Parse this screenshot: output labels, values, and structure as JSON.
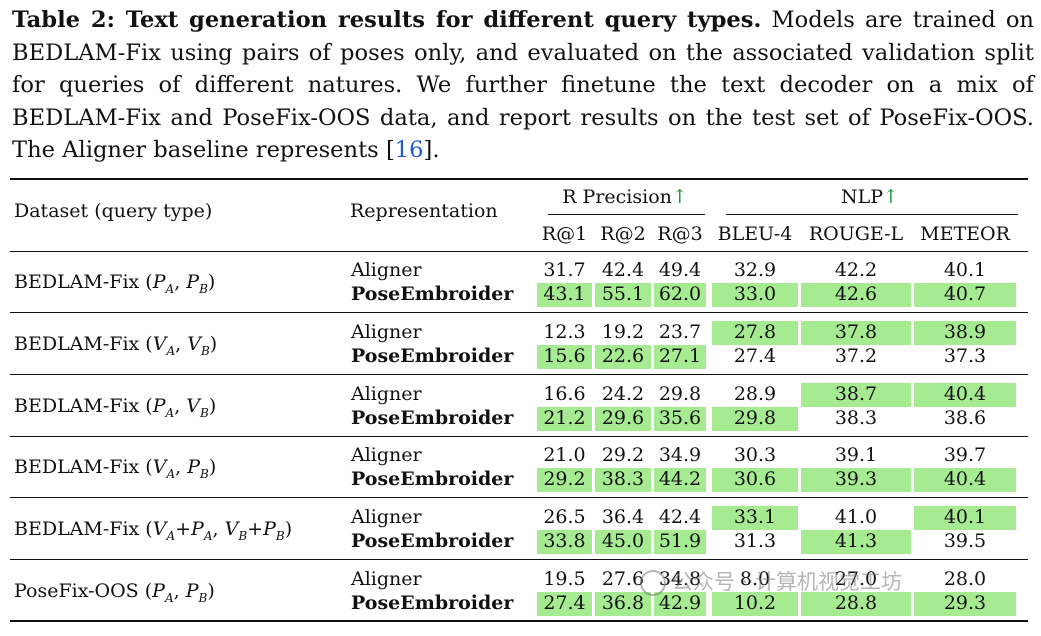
{
  "caption": {
    "label": "Table 2: Text generation results for different query types.",
    "text_before_cite": " Models are trained on BEDLAM-Fix using pairs of poses only, and evaluated on the associated validation split for queries of different natures. We further finetune the text decoder on a mix of BEDLAM-Fix and PoseFix-OOS data, and report results on the test set of PoseFix-OOS. The Aligner baseline represents [",
    "cite": "16",
    "text_after_cite": "]."
  },
  "header": {
    "dataset": "Dataset (query type)",
    "representation": "Representation",
    "group_rprecision": "R Precision",
    "group_nlp": "NLP",
    "arrow": "↑",
    "columns": [
      "R@1",
      "R@2",
      "R@3",
      "BLEU-4",
      "ROUGE-L",
      "METEOR"
    ]
  },
  "rows": [
    {
      "dataset": "BEDLAM-Fix (P_A, P_B)",
      "aligner": [
        "31.7",
        "42.4",
        "49.4",
        "32.9",
        "42.2",
        "40.1"
      ],
      "pose": [
        "43.1",
        "55.1",
        "62.0",
        "33.0",
        "42.6",
        "40.7"
      ],
      "aligner_hl": [
        false,
        false,
        false,
        false,
        false,
        false
      ],
      "pose_hl": [
        true,
        true,
        true,
        true,
        true,
        true
      ]
    },
    {
      "dataset": "BEDLAM-Fix (V_A, V_B)",
      "aligner": [
        "12.3",
        "19.2",
        "23.7",
        "27.8",
        "37.8",
        "38.9"
      ],
      "pose": [
        "15.6",
        "22.6",
        "27.1",
        "27.4",
        "37.2",
        "37.3"
      ],
      "aligner_hl": [
        false,
        false,
        false,
        true,
        true,
        true
      ],
      "pose_hl": [
        true,
        true,
        true,
        false,
        false,
        false
      ]
    },
    {
      "dataset": "BEDLAM-Fix (P_A, V_B)",
      "aligner": [
        "16.6",
        "24.2",
        "29.8",
        "28.9",
        "38.7",
        "40.4"
      ],
      "pose": [
        "21.2",
        "29.6",
        "35.6",
        "29.8",
        "38.3",
        "38.6"
      ],
      "aligner_hl": [
        false,
        false,
        false,
        false,
        true,
        true
      ],
      "pose_hl": [
        true,
        true,
        true,
        true,
        false,
        false
      ]
    },
    {
      "dataset": "BEDLAM-Fix (V_A, P_B)",
      "aligner": [
        "21.0",
        "29.2",
        "34.9",
        "30.3",
        "39.1",
        "39.7"
      ],
      "pose": [
        "29.2",
        "38.3",
        "44.2",
        "30.6",
        "39.3",
        "40.4"
      ],
      "aligner_hl": [
        false,
        false,
        false,
        false,
        false,
        false
      ],
      "pose_hl": [
        true,
        true,
        true,
        true,
        true,
        true
      ]
    },
    {
      "dataset": "BEDLAM-Fix (V_A+P_A, V_B+P_B)",
      "aligner": [
        "26.5",
        "36.4",
        "42.4",
        "33.1",
        "41.0",
        "40.1"
      ],
      "pose": [
        "33.8",
        "45.0",
        "51.9",
        "31.3",
        "41.3",
        "39.5"
      ],
      "aligner_hl": [
        false,
        false,
        false,
        true,
        false,
        true
      ],
      "pose_hl": [
        true,
        true,
        true,
        false,
        true,
        false
      ]
    },
    {
      "dataset": "PoseFix-OOS (P_A, P_B)",
      "aligner": [
        "19.5",
        "27.6",
        "34.8",
        "8.0",
        "27.0",
        "28.0"
      ],
      "pose": [
        "27.4",
        "36.8",
        "42.9",
        "10.2",
        "28.8",
        "29.3"
      ],
      "aligner_hl": [
        false,
        false,
        false,
        false,
        false,
        false
      ],
      "pose_hl": [
        true,
        true,
        true,
        true,
        true,
        true
      ]
    }
  ],
  "labels": {
    "aligner": "Aligner",
    "pose": "PoseEmbroider"
  },
  "watermark": "公众号 · 计算机视觉工坊"
}
